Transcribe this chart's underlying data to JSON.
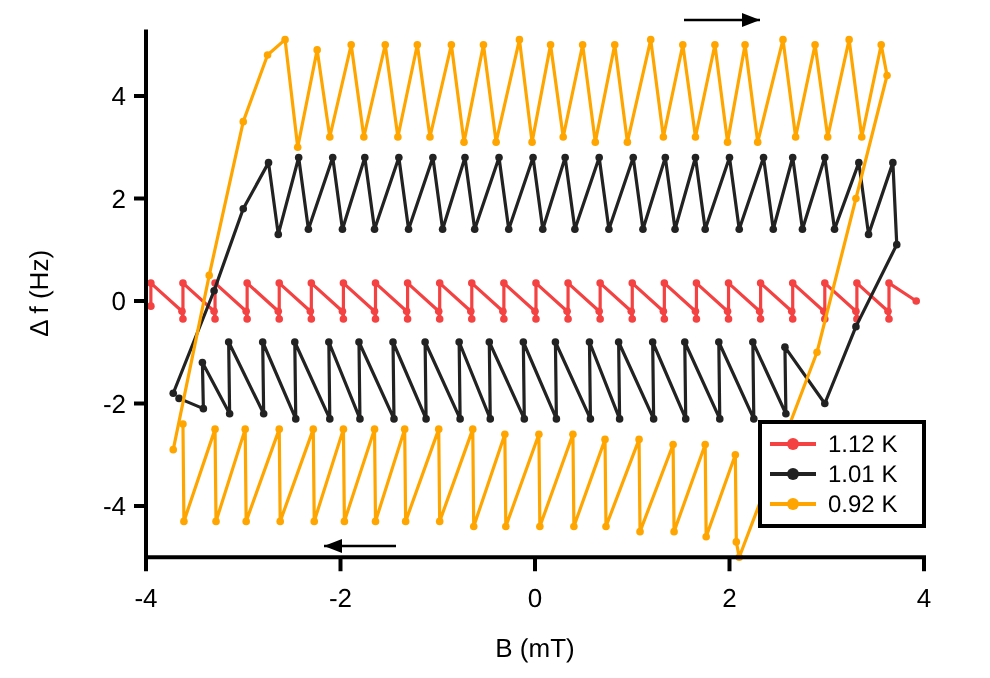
{
  "chart_data": {
    "type": "line",
    "xlabel": "B (mT)",
    "ylabel": "Δ f (Hz)",
    "xlim": [
      -4,
      4
    ],
    "ylim": [
      -5.0,
      5.3
    ],
    "xticks": [
      -4,
      -2,
      0,
      2,
      4
    ],
    "yticks": [
      -4,
      -2,
      0,
      2,
      4
    ],
    "grid": false,
    "legend": "bottom right",
    "marker": "circle",
    "line_style": "solid",
    "series": [
      {
        "name": "1.12 K",
        "color": "#f44141",
        "x": [
          -3.95,
          -3.95,
          -3.63,
          -3.62,
          -3.62,
          -3.3,
          -3.29,
          -3.29,
          -2.97,
          -2.96,
          -2.96,
          -2.64,
          -2.63,
          -2.63,
          -2.31,
          -2.3,
          -2.3,
          -1.98,
          -1.97,
          -1.97,
          -1.65,
          -1.64,
          -1.64,
          -1.32,
          -1.31,
          -1.31,
          -0.99,
          -0.98,
          -0.98,
          -0.66,
          -0.65,
          -0.65,
          -0.33,
          -0.32,
          -0.32,
          0.0,
          0.01,
          0.01,
          0.33,
          0.34,
          0.34,
          0.66,
          0.67,
          0.67,
          0.99,
          1.0,
          1.0,
          1.32,
          1.33,
          1.33,
          1.65,
          1.66,
          1.66,
          1.98,
          1.99,
          1.99,
          2.31,
          2.32,
          2.32,
          2.64,
          2.65,
          2.65,
          2.97,
          2.98,
          2.98,
          3.3,
          3.31,
          3.31,
          3.63,
          3.64,
          3.64,
          3.92
        ],
        "values": [
          -0.1,
          0.35,
          -0.2,
          -0.35,
          0.35,
          -0.2,
          -0.35,
          0.35,
          -0.2,
          -0.35,
          0.35,
          -0.2,
          -0.35,
          0.35,
          -0.2,
          -0.35,
          0.35,
          -0.2,
          -0.35,
          0.35,
          -0.2,
          -0.35,
          0.35,
          -0.2,
          -0.35,
          0.35,
          -0.2,
          -0.35,
          0.35,
          -0.2,
          -0.35,
          0.35,
          -0.2,
          -0.35,
          0.35,
          -0.2,
          -0.35,
          0.35,
          -0.2,
          -0.35,
          0.35,
          -0.2,
          -0.35,
          0.35,
          -0.2,
          -0.35,
          0.35,
          -0.2,
          -0.35,
          0.35,
          -0.2,
          -0.35,
          0.35,
          -0.2,
          -0.35,
          0.35,
          -0.2,
          -0.35,
          0.35,
          -0.2,
          -0.35,
          0.35,
          -0.2,
          -0.35,
          0.35,
          -0.2,
          -0.35,
          0.35,
          -0.2,
          -0.35,
          0.35,
          0.0
        ]
      },
      {
        "name": "1.01 K",
        "color": "#222222",
        "x": [
          -3.72,
          -3.3,
          -3.0,
          -2.74,
          -2.64,
          -2.43,
          -2.33,
          -2.08,
          -1.98,
          -1.75,
          -1.65,
          -1.4,
          -1.3,
          -1.05,
          -0.95,
          -0.72,
          -0.62,
          -0.37,
          -0.27,
          -0.02,
          0.08,
          0.31,
          0.41,
          0.66,
          0.76,
          1.01,
          1.11,
          1.34,
          1.44,
          1.65,
          1.75,
          2.0,
          2.1,
          2.35,
          2.45,
          2.65,
          2.75,
          2.98,
          3.08,
          3.33,
          3.43,
          3.68,
          3.72,
          3.3,
          2.98,
          2.57,
          2.58,
          2.24,
          2.25,
          1.89,
          1.9,
          1.54,
          1.55,
          1.21,
          1.22,
          0.86,
          0.87,
          0.56,
          0.57,
          0.21,
          0.22,
          -0.12,
          -0.11,
          -0.47,
          -0.46,
          -0.78,
          -0.77,
          -1.13,
          -1.12,
          -1.46,
          -1.45,
          -1.81,
          -1.8,
          -2.12,
          -2.11,
          -2.47,
          -2.46,
          -2.8,
          -2.79,
          -3.15,
          -3.14,
          -3.42,
          -3.41,
          -3.66
        ],
        "values": [
          -1.8,
          0.2,
          1.8,
          2.7,
          1.3,
          2.8,
          1.4,
          2.8,
          1.4,
          2.8,
          1.4,
          2.8,
          1.4,
          2.8,
          1.4,
          2.8,
          1.4,
          2.8,
          1.4,
          2.8,
          1.4,
          2.8,
          1.4,
          2.8,
          1.4,
          2.8,
          1.4,
          2.8,
          1.4,
          2.8,
          1.4,
          2.8,
          1.4,
          2.8,
          1.4,
          2.8,
          1.4,
          2.8,
          1.4,
          2.7,
          1.3,
          2.7,
          1.1,
          -0.5,
          -2.0,
          -0.9,
          -2.2,
          -0.8,
          -2.3,
          -0.8,
          -2.3,
          -0.8,
          -2.3,
          -0.8,
          -2.3,
          -0.8,
          -2.3,
          -0.8,
          -2.3,
          -0.8,
          -2.3,
          -0.8,
          -2.3,
          -0.8,
          -2.3,
          -0.8,
          -2.3,
          -0.8,
          -2.3,
          -0.8,
          -2.3,
          -0.8,
          -2.3,
          -0.8,
          -2.3,
          -0.8,
          -2.3,
          -0.8,
          -2.2,
          -0.8,
          -2.2,
          -1.2,
          -2.1,
          -1.9
        ]
      },
      {
        "name": "0.92 K",
        "color": "#ffa500",
        "x": [
          -3.72,
          -3.35,
          -3.0,
          -2.75,
          -2.57,
          -2.44,
          -2.24,
          -2.11,
          -1.89,
          -1.76,
          -1.54,
          -1.41,
          -1.21,
          -1.08,
          -0.86,
          -0.73,
          -0.53,
          -0.4,
          -0.16,
          -0.03,
          0.16,
          0.29,
          0.49,
          0.62,
          0.82,
          0.95,
          1.19,
          1.32,
          1.52,
          1.65,
          1.85,
          1.98,
          2.16,
          2.29,
          2.55,
          2.68,
          2.88,
          3.01,
          3.23,
          3.36,
          3.56,
          3.62,
          3.3,
          2.9,
          2.1,
          2.07,
          2.06,
          1.76,
          1.75,
          1.43,
          1.42,
          1.08,
          1.07,
          0.73,
          0.72,
          0.4,
          0.39,
          0.05,
          0.04,
          -0.3,
          -0.31,
          -0.63,
          -0.64,
          -0.98,
          -0.99,
          -1.33,
          -1.34,
          -1.64,
          -1.65,
          -1.96,
          -1.97,
          -2.27,
          -2.28,
          -2.62,
          -2.63,
          -2.97,
          -2.98,
          -3.28,
          -3.29,
          -3.61,
          -3.62
        ],
        "values": [
          -2.9,
          0.5,
          3.5,
          4.8,
          5.1,
          3.0,
          4.9,
          3.2,
          5.0,
          3.2,
          5.0,
          3.2,
          5.0,
          3.2,
          5.0,
          3.1,
          5.0,
          3.1,
          5.1,
          3.1,
          5.0,
          3.2,
          5.0,
          3.1,
          5.0,
          3.1,
          5.1,
          3.2,
          5.0,
          3.2,
          5.0,
          3.1,
          5.0,
          3.1,
          5.1,
          3.2,
          5.0,
          3.2,
          5.1,
          3.2,
          5.0,
          4.4,
          2.0,
          -1.0,
          -5.0,
          -4.7,
          -3.0,
          -4.6,
          -2.8,
          -4.5,
          -2.8,
          -4.5,
          -2.7,
          -4.4,
          -2.7,
          -4.4,
          -2.6,
          -4.4,
          -2.6,
          -4.4,
          -2.6,
          -4.4,
          -2.5,
          -4.3,
          -2.5,
          -4.3,
          -2.5,
          -4.3,
          -2.5,
          -4.3,
          -2.5,
          -4.3,
          -2.5,
          -4.3,
          -2.5,
          -4.3,
          -2.5,
          -4.3,
          -2.5,
          -4.3,
          -2.4
        ]
      }
    ]
  }
}
